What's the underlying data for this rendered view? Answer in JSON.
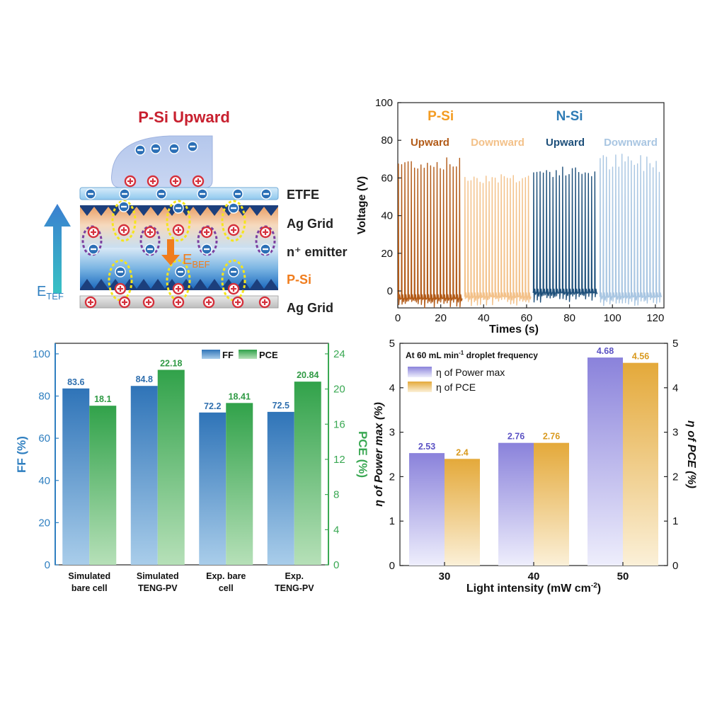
{
  "schematic": {
    "title": "P-Si Upward",
    "layers": [
      "ETFE",
      "Ag Grid",
      "n⁺ emitter",
      "P-Si",
      "Ag Grid"
    ],
    "field_bef": "E",
    "field_bef_sub": "BEF",
    "field_tef": "E",
    "field_tef_sub": "TEF",
    "colors": {
      "title": "#c8202f",
      "psi_label": "#f07d1e",
      "field": "#2f7fc0",
      "bef": "#f07d1e"
    }
  },
  "chart_data": [
    {
      "type": "line",
      "xlabel": "Times (s)",
      "ylabel": "Voltage (V)",
      "xlim": [
        0,
        124
      ],
      "ylim": [
        -9,
        100
      ],
      "xticks": [
        "0",
        "20",
        "40",
        "60",
        "80",
        "100",
        "120"
      ],
      "yticks": [
        "0",
        "20",
        "40",
        "60",
        "80",
        "100"
      ],
      "group_labels": [
        {
          "text": "P-Si",
          "color": "#f39c22",
          "x": 20
        },
        {
          "text": "N-Si",
          "color": "#2e7bb5",
          "x": 80
        }
      ],
      "series": [
        {
          "name": "Upward",
          "color": "#b25a17",
          "x_range": [
            0,
            30
          ],
          "pulses": 20,
          "peak_range": [
            64,
            71
          ],
          "base": -4
        },
        {
          "name": "Downward",
          "color": "#f3c189",
          "x_range": [
            31,
            62
          ],
          "pulses": 22,
          "peak_range": [
            57,
            63
          ],
          "base": -3
        },
        {
          "name": "Upward",
          "color": "#1d4f7a",
          "x_range": [
            63,
            93
          ],
          "pulses": 20,
          "peak_range": [
            60,
            66
          ],
          "base": -1
        },
        {
          "name": "Downward",
          "color": "#a9c6e2",
          "x_range": [
            94,
            123
          ],
          "pulses": 20,
          "peak_range": [
            63,
            73
          ],
          "base": -3
        }
      ]
    },
    {
      "type": "bar",
      "categories": [
        "Simulated\nbare cell",
        "Simulated\nTENG-PV",
        "Exp. bare\ncell",
        "Exp.\nTENG-PV"
      ],
      "series": [
        {
          "name": "FF",
          "values": [
            83.6,
            84.8,
            72.2,
            72.5
          ],
          "labels": [
            "83.6",
            "84.8",
            "72.2",
            "72.5"
          ],
          "color": "#2f7fc0",
          "axis": "left"
        },
        {
          "name": "PCE",
          "values": [
            18.1,
            22.18,
            18.41,
            20.84
          ],
          "labels": [
            "18.1",
            "22.18",
            "18.41",
            "20.84"
          ],
          "color": "#3aa853",
          "axis": "right"
        }
      ],
      "ylabel": "FF (%)",
      "ylabel_right": "PCE (%)",
      "ylim": [
        0,
        105
      ],
      "ylim_right": [
        0,
        25.2
      ],
      "yticks": [
        "0",
        "20",
        "40",
        "60",
        "80",
        "100"
      ],
      "yticks_right": [
        "0",
        "4",
        "8",
        "12",
        "16",
        "20",
        "24"
      ],
      "legend_placement": "top-center"
    },
    {
      "type": "bar",
      "annotation_main": "At 60 mL min",
      "annotation_sup": "-1",
      "annotation_tail": " droplet frequency",
      "categories": [
        "30",
        "40",
        "50"
      ],
      "series": [
        {
          "name": "η of Power max",
          "values": [
            2.53,
            2.76,
            4.68
          ],
          "labels": [
            "2.53",
            "2.76",
            "4.68"
          ],
          "color": "#8c85dc",
          "axis": "left"
        },
        {
          "name": "η of PCE",
          "values": [
            2.4,
            2.76,
            4.56
          ],
          "labels": [
            "2.4",
            "2.76",
            "4.56"
          ],
          "color": "#e3ac38",
          "axis": "right"
        }
      ],
      "xlabel_main": "Light intensity (mW cm",
      "xlabel_sup": "-2",
      "xlabel_tail": ")",
      "ylabel": "η of Power max (%)",
      "ylabel_right": "η of PCE (%)",
      "ylim": [
        0,
        5
      ],
      "yticks": [
        "0",
        "1",
        "2",
        "3",
        "4",
        "5"
      ],
      "legend_placement": "top-left"
    }
  ]
}
